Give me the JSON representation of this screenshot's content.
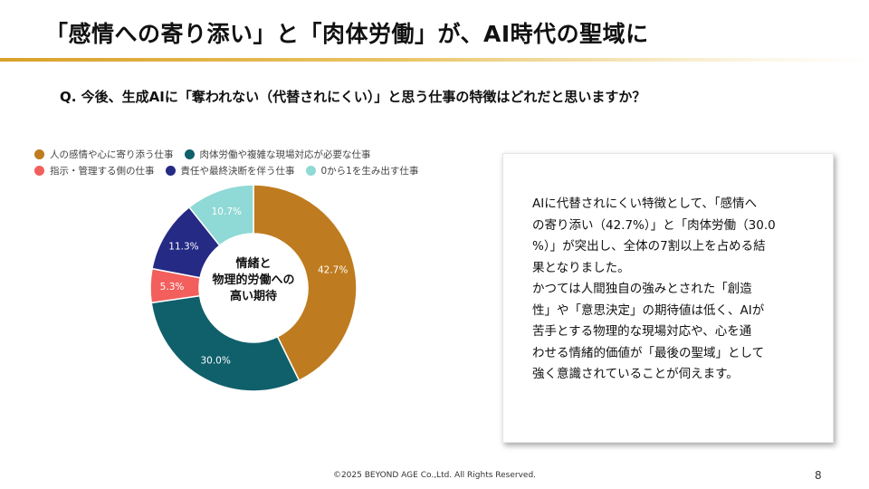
{
  "title": "「感情への寄り添い」と「肉体労働」が、AI時代の聖域に",
  "question": "Q. 今後、生成AIに「奪われない（代替されにくい）」と思う仕事の特徴はどれだと思いますか？",
  "chart_data": {
    "type": "pie",
    "donut": true,
    "center_label": "情緒と物理的労働への高い期待",
    "series": [
      {
        "name": "人の感情や心に寄り添う仕事",
        "value": 42.7,
        "label": "42.7%",
        "color": "#bf7b1f"
      },
      {
        "name": "肉体労働や複雑な現場対応が必要な仕事",
        "value": 30.0,
        "label": "30.0%",
        "color": "#10606b"
      },
      {
        "name": "指示・管理する側の仕事",
        "value": 5.3,
        "label": "5.3%",
        "color": "#f25f5c"
      },
      {
        "name": "責任や最終決断を伴う仕事",
        "value": 11.3,
        "label": "11.3%",
        "color": "#252a85"
      },
      {
        "name": "0から1を生み出す仕事",
        "value": 10.7,
        "label": "10.7%",
        "color": "#8fd9d6"
      }
    ],
    "legend_placement": "top"
  },
  "summary": {
    "lines": [
      "AIに代替されにくい特徴として、「感情へ",
      "の寄り添い（42.7%）」と「肉体労働（30.0",
      "%）」が突出し、全体の7割以上を占める結",
      "果となりました。",
      "かつては人間独自の強みとされた「創造",
      "性」や「意思決定」の期待値は低く、AIが",
      "苦手とする物理的な現場対応や、心を通",
      "わせる情緒的価値が「最後の聖域」として",
      "強く意識されていることが伺えます。"
    ]
  },
  "footer": {
    "copyright": "©2025 BEYOND AGE Co.,Ltd. All Rights Reserved.",
    "page": "8"
  }
}
